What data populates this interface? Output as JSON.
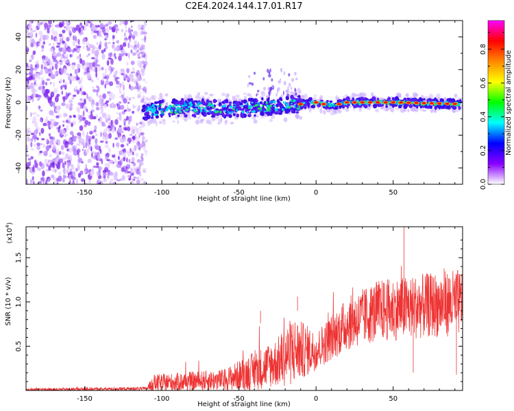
{
  "title": "C2E4.2024.144.17.01.R17",
  "chart_data": [
    {
      "type": "heatmap",
      "id": "spectrogram",
      "xlabel": "Height of straight line (km)",
      "ylabel": "Frequency (Hz)",
      "xlim": [
        -188,
        95
      ],
      "ylim": [
        -50,
        50
      ],
      "xticks": [
        -150,
        -100,
        -50,
        0,
        50
      ],
      "xtick_labels": [
        "-150",
        "-100",
        "-50",
        "0",
        "50"
      ],
      "yticks": [
        -40,
        -20,
        0,
        20,
        40
      ],
      "ytick_labels": [
        "-40",
        "-20",
        "0",
        "20",
        "40"
      ],
      "noise_region_x": [
        -188,
        -112
      ],
      "band_center": [
        {
          "x": -112,
          "y": -6
        },
        {
          "x": -100,
          "y": -4
        },
        {
          "x": -80,
          "y": -3
        },
        {
          "x": -60,
          "y": -4
        },
        {
          "x": -40,
          "y": -3
        },
        {
          "x": -20,
          "y": -2
        },
        {
          "x": -10,
          "y": -1
        },
        {
          "x": 0,
          "y": 0
        },
        {
          "x": 10,
          "y": -2
        },
        {
          "x": 20,
          "y": 0
        },
        {
          "x": 50,
          "y": 0
        },
        {
          "x": 95,
          "y": -1
        }
      ],
      "peak_markers_x": [
        -10,
        0,
        5,
        15,
        20,
        25,
        30,
        35,
        40,
        45,
        50,
        55,
        60,
        65,
        70,
        75,
        80,
        85,
        90
      ]
    },
    {
      "type": "line",
      "id": "snr",
      "xlabel": "Height of straight line (km)",
      "ylabel": "SNR (10 * v/v)",
      "scale_label": "(x10",
      "scale_exponent": "4",
      "xlim": [
        -188,
        95
      ],
      "ylim": [
        0,
        1.85
      ],
      "xticks": [
        -150,
        -100,
        -50,
        0,
        50
      ],
      "xtick_labels": [
        "-150",
        "-100",
        "-50",
        "0",
        "50"
      ],
      "yticks": [
        0.5,
        1.0,
        1.5
      ],
      "ytick_labels": [
        "0.5",
        "1.0",
        "1.5"
      ],
      "series": [
        {
          "name": "SNR",
          "color": "#ee3333",
          "envelope": [
            {
              "x": -188,
              "base": 0.01,
              "amp": 0.015
            },
            {
              "x": -110,
              "base": 0.02,
              "amp": 0.02
            },
            {
              "x": -105,
              "base": 0.08,
              "amp": 0.1
            },
            {
              "x": -60,
              "base": 0.12,
              "amp": 0.12
            },
            {
              "x": -40,
              "base": 0.22,
              "amp": 0.22
            },
            {
              "x": -25,
              "base": 0.32,
              "amp": 0.28
            },
            {
              "x": -15,
              "base": 0.45,
              "amp": 0.4
            },
            {
              "x": 0,
              "base": 0.45,
              "amp": 0.22
            },
            {
              "x": 20,
              "base": 0.75,
              "amp": 0.3
            },
            {
              "x": 40,
              "base": 0.9,
              "amp": 0.35
            },
            {
              "x": 95,
              "base": 1.0,
              "amp": 0.38
            }
          ]
        }
      ]
    }
  ],
  "colorbar": {
    "label": "Normalized spectral amplitude",
    "ticks": [
      0.0,
      0.2,
      0.4,
      0.6,
      0.8
    ],
    "tick_labels": [
      "0.0",
      "0.2",
      "0.4",
      "0.6",
      "0.8"
    ],
    "range": [
      0,
      0.97
    ],
    "colors": [
      "#ffffff",
      "#8800ff",
      "#0000ff",
      "#00ffff",
      "#00ff00",
      "#ffff00",
      "#ff8800",
      "#ff0000",
      "#ff00ff"
    ]
  }
}
